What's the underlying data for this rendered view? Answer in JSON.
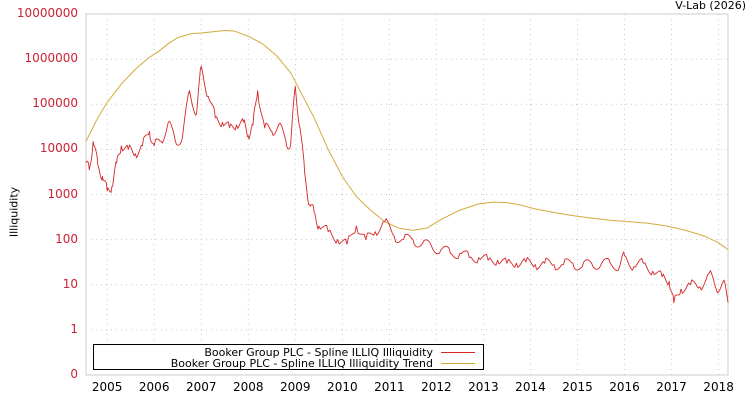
{
  "credit": "V-Lab (2026)",
  "chart_data": {
    "type": "line",
    "title": "",
    "xlabel": "",
    "ylabel": "Illiquidity",
    "yscale": "log",
    "ylim": [
      0,
      10000000
    ],
    "yticks": [
      "10000000",
      "1000000",
      "100000",
      "10000",
      "1000",
      "100",
      "10",
      "1",
      "0"
    ],
    "xticks": [
      "2005",
      "2006",
      "2007",
      "2008",
      "2009",
      "2010",
      "2011",
      "2012",
      "2013",
      "2014",
      "2015",
      "2016",
      "2017",
      "2018"
    ],
    "xlim": [
      2004.55,
      2018.2
    ],
    "grid": true,
    "legend_position": "bottom-left",
    "series": [
      {
        "name": "Booker Group PLC - Spline ILLIQ Illiquidity",
        "color": "#d62728",
        "x": [
          2004.55,
          2004.62,
          2004.7,
          2004.8,
          2004.9,
          2005.0,
          2005.1,
          2005.2,
          2005.3,
          2005.45,
          2005.6,
          2005.75,
          2005.9,
          2006.0,
          2006.15,
          2006.3,
          2006.45,
          2006.6,
          2006.75,
          2006.9,
          2007.0,
          2007.15,
          2007.3,
          2007.45,
          2007.6,
          2007.75,
          2007.9,
          2008.0,
          2008.1,
          2008.2,
          2008.35,
          2008.5,
          2008.65,
          2008.8,
          2008.9,
          2009.0,
          2009.1,
          2009.2,
          2009.3,
          2009.4,
          2009.5,
          2009.7,
          2009.9,
          2010.1,
          2010.3,
          2010.5,
          2010.7,
          2010.9,
          2011.1,
          2011.3,
          2011.5,
          2011.7,
          2011.9,
          2012.1,
          2012.3,
          2012.5,
          2012.7,
          2012.9,
          2013.1,
          2013.3,
          2013.5,
          2013.7,
          2013.9,
          2014.1,
          2014.3,
          2014.5,
          2014.7,
          2014.9,
          2015.1,
          2015.3,
          2015.5,
          2015.7,
          2015.9,
          2016.0,
          2016.2,
          2016.4,
          2016.6,
          2016.8,
          2016.95,
          2017.05,
          2017.2,
          2017.4,
          2017.6,
          2017.8,
          2017.95,
          2018.1,
          2018.2
        ],
        "values": [
          5000,
          3500,
          15000,
          4500,
          2500,
          1200,
          1500,
          5000,
          12000,
          10000,
          8000,
          12000,
          25000,
          12000,
          15000,
          40000,
          15000,
          18000,
          200000,
          60000,
          700000,
          150000,
          50000,
          40000,
          30000,
          35000,
          40000,
          20000,
          35000,
          200000,
          30000,
          25000,
          35000,
          15000,
          12000,
          250000,
          30000,
          3000,
          600,
          400,
          200,
          150,
          100,
          80,
          200,
          100,
          150,
          250,
          120,
          100,
          100,
          80,
          70,
          60,
          50,
          50,
          40,
          40,
          35,
          35,
          30,
          30,
          32,
          28,
          30,
          28,
          28,
          30,
          25,
          30,
          28,
          30,
          26,
          45,
          25,
          30,
          20,
          15,
          12,
          4,
          8,
          10,
          9,
          18,
          8,
          12,
          4
        ]
      },
      {
        "name": "Booker Group PLC - Spline ILLIQ Illiquidity Trend",
        "color": "#d4aa3c",
        "x": [
          2004.55,
          2004.8,
          2005.0,
          2005.3,
          2005.6,
          2005.9,
          2006.1,
          2006.3,
          2006.5,
          2006.8,
          2007.0,
          2007.3,
          2007.5,
          2007.7,
          2008.0,
          2008.3,
          2008.6,
          2008.9,
          2009.1,
          2009.4,
          2009.7,
          2010.0,
          2010.3,
          2010.6,
          2010.9,
          2011.2,
          2011.5,
          2011.8,
          2012.1,
          2012.5,
          2012.9,
          2013.2,
          2013.5,
          2013.8,
          2014.1,
          2014.5,
          2014.9,
          2015.3,
          2015.7,
          2016.1,
          2016.5,
          2016.9,
          2017.3,
          2017.7,
          2018.0,
          2018.2
        ],
        "values": [
          15000,
          50000,
          110000,
          280000,
          600000,
          1100000,
          1500000,
          2200000,
          3000000,
          3700000,
          3800000,
          4100000,
          4300000,
          4200000,
          3200000,
          2200000,
          1200000,
          500000,
          200000,
          50000,
          10000,
          2500,
          900,
          450,
          250,
          180,
          160,
          180,
          280,
          450,
          620,
          680,
          660,
          580,
          480,
          400,
          340,
          300,
          270,
          250,
          230,
          200,
          160,
          120,
          85,
          60
        ]
      }
    ]
  }
}
